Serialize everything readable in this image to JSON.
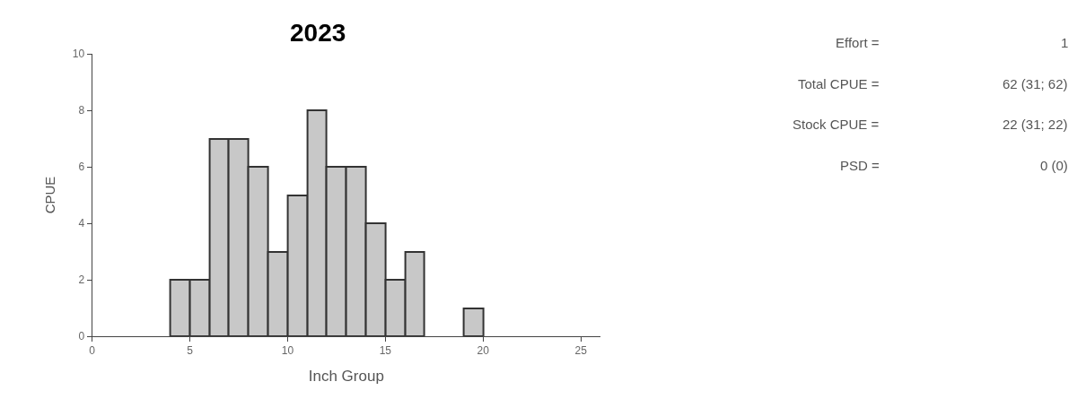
{
  "chart_data": [
    {
      "type": "histogram",
      "title": "2023",
      "xlabel": "Inch Group",
      "ylabel": "CPUE",
      "bins": [
        4,
        5,
        6,
        7,
        8,
        9,
        10,
        11,
        12,
        13,
        14,
        15,
        16,
        17,
        18,
        19,
        20
      ],
      "values": [
        2,
        2,
        7,
        7,
        6,
        3,
        5,
        8,
        6,
        6,
        4,
        2,
        3,
        0,
        0,
        1
      ],
      "color": "#c8c8c8",
      "xlim": [
        0,
        26
      ],
      "xticks": [
        0,
        5,
        10,
        15,
        20,
        25
      ],
      "ylim": [
        0,
        10
      ],
      "yticks": [
        0,
        2,
        4,
        6,
        8,
        10
      ]
    },
    {
      "type": "other",
      "annotations": [
        "Effort =",
        "1",
        "Total CPUE =",
        "62 (31; 62)",
        "Stock CPUE =",
        "22 (31; 22)",
        "PSD =",
        "0 (0)"
      ]
    }
  ]
}
